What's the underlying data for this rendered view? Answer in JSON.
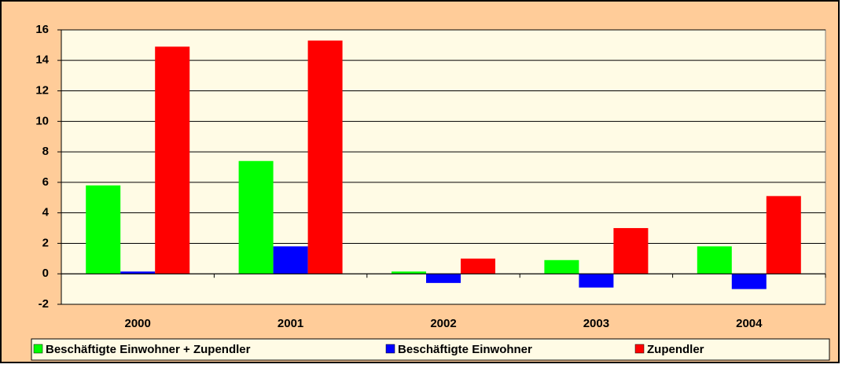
{
  "chart_data": {
    "type": "bar",
    "categories": [
      "2000",
      "2001",
      "2002",
      "2003",
      "2004"
    ],
    "series": [
      {
        "name": "Beschäftigte Einwohner + Zupendler",
        "color": "#00ff00",
        "values": [
          5.8,
          7.4,
          0.15,
          0.9,
          1.8
        ]
      },
      {
        "name": "Beschäftigte Einwohner",
        "color": "#0000ff",
        "values": [
          0.15,
          1.8,
          -0.6,
          -0.9,
          -1.0
        ]
      },
      {
        "name": "Zupendler",
        "color": "#ff0000",
        "values": [
          14.9,
          15.3,
          1.0,
          3.0,
          5.1
        ]
      }
    ],
    "ylim": [
      -2,
      16
    ],
    "yticks": [
      -2,
      0,
      2,
      4,
      6,
      8,
      10,
      12,
      14,
      16
    ],
    "grid": true,
    "legend": "bottom"
  }
}
